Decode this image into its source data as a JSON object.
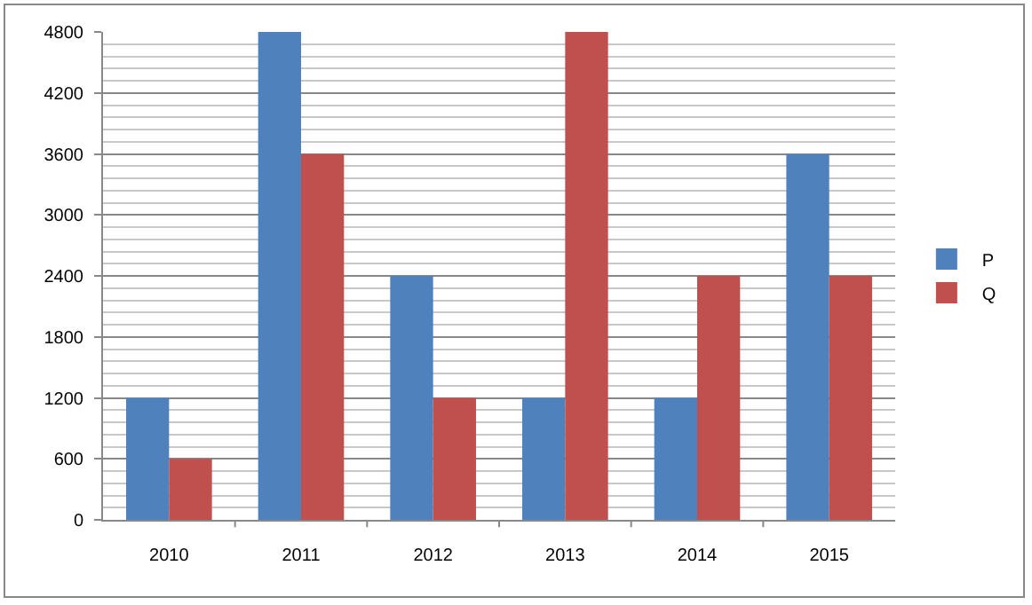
{
  "chart_data": {
    "type": "bar",
    "categories": [
      "2010",
      "2011",
      "2012",
      "2013",
      "2014",
      "2015"
    ],
    "series": [
      {
        "name": "P",
        "color": "#4f81bd",
        "values": [
          1200,
          4800,
          2400,
          1200,
          1200,
          3600
        ]
      },
      {
        "name": "Q",
        "color": "#c0504d",
        "values": [
          600,
          3600,
          1200,
          4800,
          2400,
          2400
        ]
      }
    ],
    "ylim": [
      0,
      4800
    ],
    "yticks": [
      0,
      600,
      1200,
      1800,
      2400,
      3000,
      3600,
      4200,
      4800
    ],
    "grid": "y",
    "legend": "right"
  }
}
